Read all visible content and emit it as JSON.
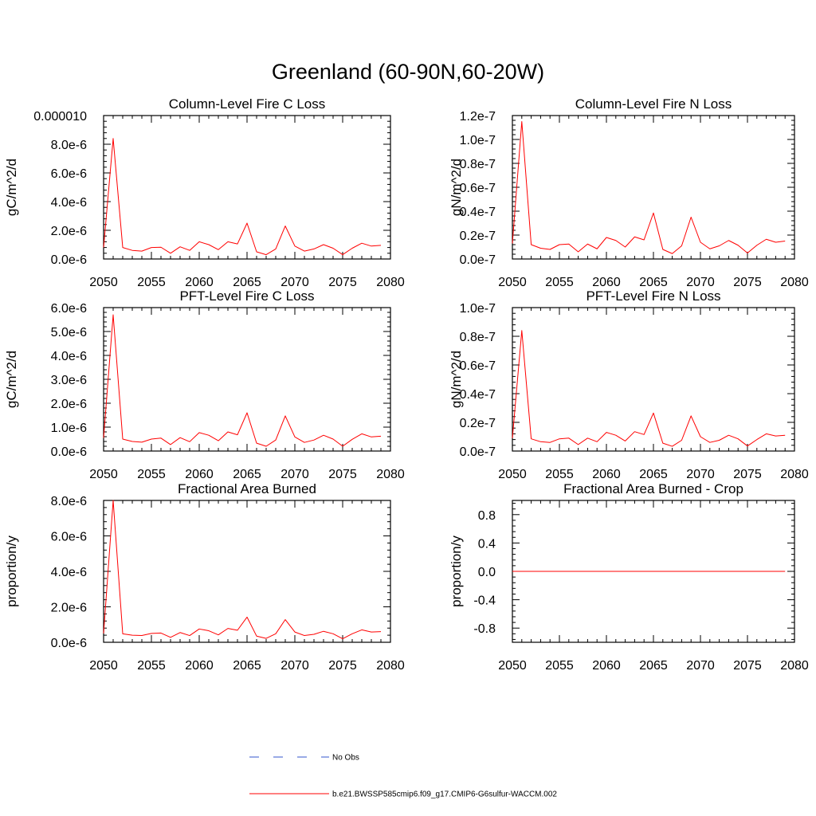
{
  "title": "Greenland (60-90N,60-20W)",
  "chart_data": [
    {
      "type": "line",
      "title": "Column-Level Fire C Loss",
      "ylabel": "gC/m^2/d",
      "xlim": [
        2050,
        2080
      ],
      "xticks": [
        2050,
        2055,
        2060,
        2065,
        2070,
        2075,
        2080
      ],
      "xtick_labels": [
        "2050",
        "2055",
        "2060",
        "2065",
        "2070",
        "2075",
        "2080"
      ],
      "ylim": [
        0,
        1e-05
      ],
      "yticks": [
        0,
        2e-06,
        4e-06,
        6e-06,
        8e-06,
        1e-05
      ],
      "ytick_labels": [
        "0.0e-6",
        "2.0e-6",
        "4.0e-6",
        "6.0e-6",
        "8.0e-6",
        "0.000010"
      ],
      "x": [
        2050,
        2051,
        2052,
        2053,
        2054,
        2055,
        2056,
        2057,
        2058,
        2059,
        2060,
        2061,
        2062,
        2063,
        2064,
        2065,
        2066,
        2067,
        2068,
        2069,
        2070,
        2071,
        2072,
        2073,
        2074,
        2075,
        2076,
        2077,
        2078,
        2079
      ],
      "series": [
        {
          "values": [
            8e-07,
            8.4e-06,
            8e-07,
            6e-07,
            5.5e-07,
            8e-07,
            8.2e-07,
            4e-07,
            8.5e-07,
            6e-07,
            1.2e-06,
            1e-06,
            6.5e-07,
            1.2e-06,
            1.05e-06,
            2.5e-06,
            5e-07,
            3e-07,
            7e-07,
            2.3e-06,
            9e-07,
            5.5e-07,
            7e-07,
            1e-06,
            7.5e-07,
            3e-07,
            7.5e-07,
            1.1e-06,
            9e-07,
            9.5e-07
          ],
          "color": "#ff0000"
        }
      ]
    },
    {
      "type": "line",
      "title": "Column-Level Fire N Loss",
      "ylabel": "gN/m^2/d",
      "xlim": [
        2050,
        2080
      ],
      "xticks": [
        2050,
        2055,
        2060,
        2065,
        2070,
        2075,
        2080
      ],
      "xtick_labels": [
        "2050",
        "2055",
        "2060",
        "2065",
        "2070",
        "2075",
        "2080"
      ],
      "ylim": [
        0,
        1.2e-07
      ],
      "yticks": [
        0,
        2e-08,
        4e-08,
        6e-08,
        8e-08,
        1e-07,
        1.2e-07
      ],
      "ytick_labels": [
        "0.0e-7",
        "0.2e-7",
        "0.4e-7",
        "0.6e-7",
        "0.8e-7",
        "1.0e-7",
        "1.2e-7"
      ],
      "x": [
        2050,
        2051,
        2052,
        2053,
        2054,
        2055,
        2056,
        2057,
        2058,
        2059,
        2060,
        2061,
        2062,
        2063,
        2064,
        2065,
        2066,
        2067,
        2068,
        2069,
        2070,
        2071,
        2072,
        2073,
        2074,
        2075,
        2076,
        2077,
        2078,
        2079
      ],
      "series": [
        {
          "values": [
            1.3e-08,
            1.15e-07,
            1.2e-08,
            9e-09,
            8e-09,
            1.2e-08,
            1.25e-08,
            6e-09,
            1.25e-08,
            8.5e-09,
            1.8e-08,
            1.55e-08,
            1e-08,
            1.85e-08,
            1.6e-08,
            3.85e-08,
            8e-09,
            4.5e-09,
            1.1e-08,
            3.5e-08,
            1.4e-08,
            8.5e-09,
            1.1e-08,
            1.55e-08,
            1.15e-08,
            5e-09,
            1.15e-08,
            1.65e-08,
            1.4e-08,
            1.5e-08
          ],
          "color": "#ff0000"
        }
      ]
    },
    {
      "type": "line",
      "title": "PFT-Level Fire C Loss",
      "ylabel": "gC/m^2/d",
      "xlim": [
        2050,
        2080
      ],
      "xticks": [
        2050,
        2055,
        2060,
        2065,
        2070,
        2075,
        2080
      ],
      "xtick_labels": [
        "2050",
        "2055",
        "2060",
        "2065",
        "2070",
        "2075",
        "2080"
      ],
      "ylim": [
        0,
        6e-06
      ],
      "yticks": [
        0,
        1e-06,
        2e-06,
        3e-06,
        4e-06,
        5e-06,
        6e-06
      ],
      "ytick_labels": [
        "0.0e-6",
        "1.0e-6",
        "2.0e-6",
        "3.0e-6",
        "4.0e-6",
        "5.0e-6",
        "6.0e-6"
      ],
      "x": [
        2050,
        2051,
        2052,
        2053,
        2054,
        2055,
        2056,
        2057,
        2058,
        2059,
        2060,
        2061,
        2062,
        2063,
        2064,
        2065,
        2066,
        2067,
        2068,
        2069,
        2070,
        2071,
        2072,
        2073,
        2074,
        2075,
        2076,
        2077,
        2078,
        2079
      ],
      "series": [
        {
          "values": [
            5.5e-07,
            5.7e-06,
            5e-07,
            4e-07,
            3.7e-07,
            5e-07,
            5.4e-07,
            2.7e-07,
            5.6e-07,
            3.9e-07,
            7.7e-07,
            6.6e-07,
            4.3e-07,
            8e-07,
            6.8e-07,
            1.6e-06,
            3.3e-07,
            2e-07,
            4.6e-07,
            1.47e-06,
            5.9e-07,
            3.6e-07,
            4.6e-07,
            6.6e-07,
            5e-07,
            2e-07,
            4.9e-07,
            7.2e-07,
            5.9e-07,
            6.2e-07
          ],
          "color": "#ff0000"
        }
      ]
    },
    {
      "type": "line",
      "title": "PFT-Level Fire N Loss",
      "ylabel": "gN/m^2/d",
      "xlim": [
        2050,
        2080
      ],
      "xticks": [
        2050,
        2055,
        2060,
        2065,
        2070,
        2075,
        2080
      ],
      "xtick_labels": [
        "2050",
        "2055",
        "2060",
        "2065",
        "2070",
        "2075",
        "2080"
      ],
      "ylim": [
        0,
        1e-07
      ],
      "yticks": [
        0,
        2e-08,
        4e-08,
        6e-08,
        8e-08,
        1e-07
      ],
      "ytick_labels": [
        "0.0e-7",
        "0.2e-7",
        "0.4e-7",
        "0.6e-7",
        "0.8e-7",
        "1.0e-7"
      ],
      "x": [
        2050,
        2051,
        2052,
        2053,
        2054,
        2055,
        2056,
        2057,
        2058,
        2059,
        2060,
        2061,
        2062,
        2063,
        2064,
        2065,
        2066,
        2067,
        2068,
        2069,
        2070,
        2071,
        2072,
        2073,
        2074,
        2075,
        2076,
        2077,
        2078,
        2079
      ],
      "series": [
        {
          "values": [
            9e-09,
            8.4e-08,
            8.5e-09,
            6.5e-09,
            6e-09,
            8.5e-09,
            9e-09,
            4.5e-09,
            9e-09,
            6.5e-09,
            1.3e-08,
            1.1e-08,
            7e-09,
            1.35e-08,
            1.15e-08,
            2.65e-08,
            5.5e-09,
            3.3e-09,
            7.5e-09,
            2.45e-08,
            1e-08,
            6e-09,
            7.5e-09,
            1.1e-08,
            8.5e-09,
            3.5e-09,
            8e-09,
            1.2e-08,
            1.05e-08,
            1.1e-08
          ],
          "color": "#ff0000"
        }
      ]
    },
    {
      "type": "line",
      "title": "Fractional Area Burned",
      "ylabel": "proportion/y",
      "xlim": [
        2050,
        2080
      ],
      "xticks": [
        2050,
        2055,
        2060,
        2065,
        2070,
        2075,
        2080
      ],
      "xtick_labels": [
        "2050",
        "2055",
        "2060",
        "2065",
        "2070",
        "2075",
        "2080"
      ],
      "ylim": [
        0,
        8e-06
      ],
      "yticks": [
        0,
        2e-06,
        4e-06,
        6e-06,
        8e-06
      ],
      "ytick_labels": [
        "0.0e-6",
        "2.0e-6",
        "4.0e-6",
        "6.0e-6",
        "8.0e-6"
      ],
      "x": [
        2050,
        2051,
        2052,
        2053,
        2054,
        2055,
        2056,
        2057,
        2058,
        2059,
        2060,
        2061,
        2062,
        2063,
        2064,
        2065,
        2066,
        2067,
        2068,
        2069,
        2070,
        2071,
        2072,
        2073,
        2074,
        2075,
        2076,
        2077,
        2078,
        2079
      ],
      "series": [
        {
          "values": [
            5e-07,
            8e-06,
            4.8e-07,
            4e-07,
            3.8e-07,
            5e-07,
            5.2e-07,
            2.8e-07,
            5.5e-07,
            3.8e-07,
            7.5e-07,
            6.5e-07,
            4.2e-07,
            7.8e-07,
            6.8e-07,
            1.42e-06,
            3.5e-07,
            2.2e-07,
            4.8e-07,
            1.28e-06,
            5.8e-07,
            3.8e-07,
            4.5e-07,
            6.2e-07,
            4.8e-07,
            2e-07,
            4.8e-07,
            7e-07,
            5.8e-07,
            6e-07
          ],
          "color": "#ff0000"
        }
      ]
    },
    {
      "type": "line",
      "title": "Fractional Area Burned - Crop",
      "ylabel": "proportion/y",
      "xlim": [
        2050,
        2080
      ],
      "xticks": [
        2050,
        2055,
        2060,
        2065,
        2070,
        2075,
        2080
      ],
      "xtick_labels": [
        "2050",
        "2055",
        "2060",
        "2065",
        "2070",
        "2075",
        "2080"
      ],
      "ylim": [
        -1.0,
        1.0
      ],
      "yticks": [
        -0.8,
        -0.4,
        0.0,
        0.4,
        0.8
      ],
      "ytick_labels": [
        "-0.8",
        "-0.4",
        "0.0",
        "0.4",
        "0.8"
      ],
      "x": [
        2050,
        2051,
        2052,
        2053,
        2054,
        2055,
        2056,
        2057,
        2058,
        2059,
        2060,
        2061,
        2062,
        2063,
        2064,
        2065,
        2066,
        2067,
        2068,
        2069,
        2070,
        2071,
        2072,
        2073,
        2074,
        2075,
        2076,
        2077,
        2078,
        2079
      ],
      "series": [
        {
          "values": [
            0,
            0,
            0,
            0,
            0,
            0,
            0,
            0,
            0,
            0,
            0,
            0,
            0,
            0,
            0,
            0,
            0,
            0,
            0,
            0,
            0,
            0,
            0,
            0,
            0,
            0,
            0,
            0,
            0,
            0
          ],
          "color": "#ff0000"
        }
      ]
    }
  ],
  "legend": [
    {
      "label": "No Obs",
      "color": "#3355cc",
      "style": "dashed"
    },
    {
      "label": "b.e21.BWSSP585cmip6.f09_g17.CMIP6-G6sulfur-WACCM.002",
      "color": "#ff0000",
      "style": "solid"
    }
  ]
}
